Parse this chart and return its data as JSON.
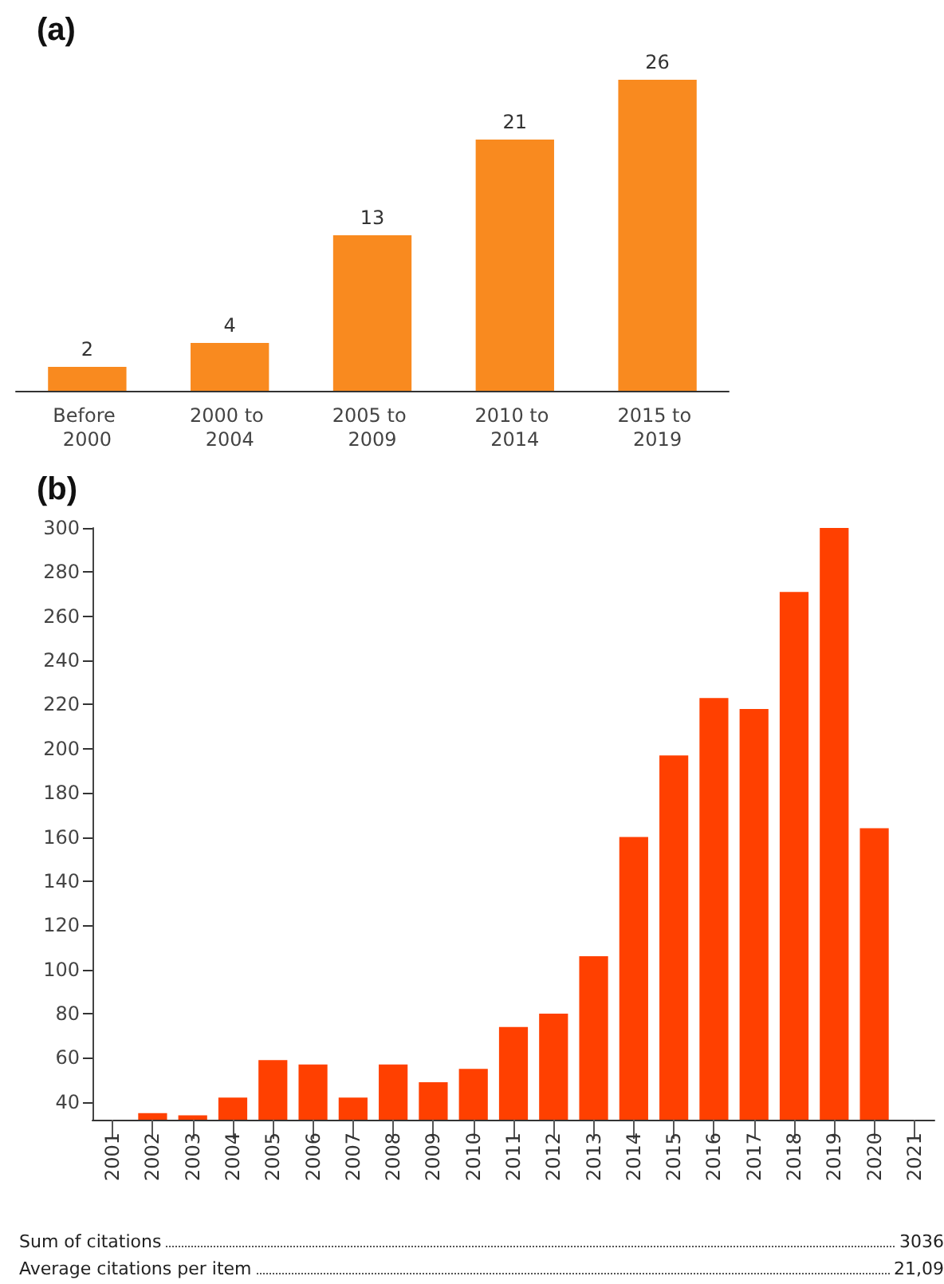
{
  "chart_data": [
    {
      "type": "bar",
      "title": "(a)",
      "categories": [
        "Before 2000",
        "2000 to 2004",
        "2005 to 2009",
        "2010 to 2014",
        "2015 to 2019"
      ],
      "values": [
        2,
        4,
        13,
        21,
        26
      ],
      "color": "#f98a1f",
      "data_labels": true,
      "tick_labels": "x"
    },
    {
      "type": "bar",
      "title": "(b)",
      "categories": [
        "2001",
        "2002",
        "2003",
        "2004",
        "2005",
        "2006",
        "2007",
        "2008",
        "2009",
        "2010",
        "2011",
        "2012",
        "2013",
        "2014",
        "2015",
        "2016",
        "2017",
        "2018",
        "2019",
        "2020",
        "2021"
      ],
      "values": [
        null,
        35,
        34,
        42,
        59,
        57,
        42,
        57,
        49,
        55,
        74,
        80,
        106,
        160,
        197,
        223,
        218,
        271,
        300,
        164,
        null
      ],
      "color": "#ff4000",
      "ylim": [
        32,
        300
      ],
      "yticks": [
        40,
        60,
        80,
        100,
        120,
        140,
        160,
        180,
        200,
        220,
        240,
        260,
        280,
        300
      ],
      "annotations": [
        "Sum of citations",
        "3036",
        "Average citations per item",
        "21,09"
      ]
    }
  ]
}
